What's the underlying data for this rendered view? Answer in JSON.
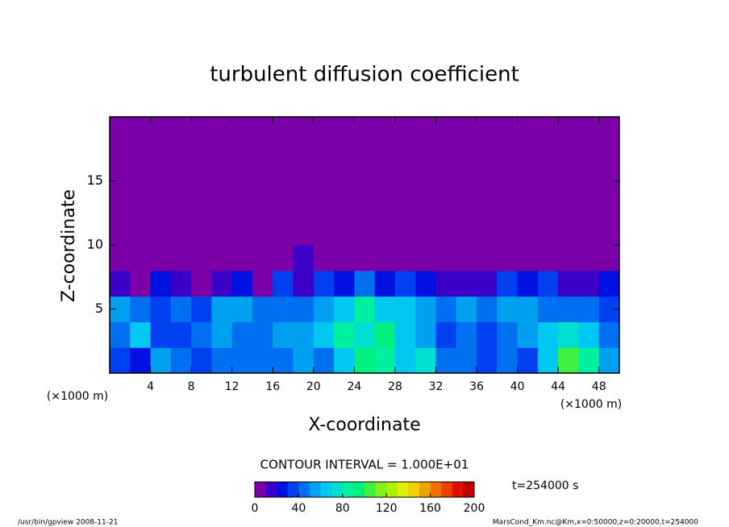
{
  "chart_data": {
    "type": "contour",
    "title": "turbulent diffusion coefficient",
    "xlabel": "X-coordinate",
    "ylabel": "Z-coordinate",
    "xunit": "(×1000 m)",
    "yunit": "(×1000 m)",
    "xlim": [
      0,
      50
    ],
    "ylim": [
      0,
      20
    ],
    "xticks": [
      4,
      8,
      12,
      16,
      20,
      24,
      28,
      32,
      36,
      40,
      44,
      48
    ],
    "yticks": [
      5,
      10,
      15
    ],
    "z": [
      [
        30,
        25,
        50,
        40,
        30,
        45,
        40,
        40,
        45,
        50,
        40,
        60,
        90,
        80,
        60,
        70,
        40,
        45,
        35,
        40,
        30,
        60,
        100,
        80,
        50
      ],
      [
        40,
        60,
        35,
        30,
        40,
        50,
        40,
        45,
        50,
        50,
        60,
        80,
        70,
        90,
        60,
        50,
        30,
        40,
        30,
        40,
        50,
        60,
        70,
        60,
        40
      ],
      [
        50,
        40,
        30,
        40,
        30,
        50,
        50,
        40,
        40,
        40,
        50,
        60,
        80,
        60,
        60,
        50,
        40,
        50,
        40,
        50,
        50,
        40,
        40,
        40,
        30
      ],
      [
        10,
        0,
        20,
        10,
        0,
        10,
        20,
        0,
        30,
        10,
        30,
        20,
        40,
        20,
        30,
        20,
        10,
        10,
        10,
        30,
        20,
        30,
        10,
        10,
        20
      ],
      [
        0,
        0,
        0,
        0,
        0,
        0,
        0,
        0,
        0,
        10,
        0,
        0,
        0,
        0,
        0,
        0,
        0,
        0,
        0,
        0,
        0,
        0,
        0,
        0,
        0
      ],
      [
        0,
        0,
        0,
        0,
        0,
        0,
        0,
        0,
        0,
        0,
        0,
        0,
        0,
        0,
        0,
        0,
        0,
        0,
        0,
        0,
        0,
        0,
        0,
        0,
        0
      ],
      [
        0,
        0,
        0,
        0,
        0,
        0,
        0,
        0,
        0,
        0,
        0,
        0,
        0,
        0,
        0,
        0,
        0,
        0,
        0,
        0,
        0,
        0,
        0,
        0,
        0
      ],
      [
        0,
        0,
        0,
        0,
        0,
        0,
        0,
        0,
        0,
        0,
        0,
        0,
        0,
        0,
        0,
        0,
        0,
        0,
        0,
        0,
        0,
        0,
        0,
        0,
        0
      ],
      [
        0,
        0,
        0,
        0,
        0,
        0,
        0,
        0,
        0,
        0,
        0,
        0,
        0,
        0,
        0,
        0,
        0,
        0,
        0,
        0,
        0,
        0,
        0,
        0,
        0
      ],
      [
        0,
        0,
        0,
        0,
        0,
        0,
        0,
        0,
        0,
        0,
        0,
        0,
        0,
        0,
        0,
        0,
        0,
        0,
        0,
        0,
        0,
        0,
        0,
        0,
        0
      ]
    ],
    "contour_label": "CONTOUR INTERVAL = 1.000E+01",
    "time_label": "t=254000 s",
    "colorbar": {
      "lim": [
        0,
        200
      ],
      "ticks": [
        0,
        40,
        80,
        120,
        160,
        200
      ],
      "colors": [
        "#7b00a8",
        "#3c00c8",
        "#0010e0",
        "#0040f0",
        "#0070f0",
        "#00a0f0",
        "#00c8f0",
        "#00e0d0",
        "#00f0a0",
        "#00f080",
        "#40f040",
        "#80f020",
        "#b0f000",
        "#e0f000",
        "#f0d000",
        "#f0a000",
        "#f07000",
        "#f04000",
        "#e01000",
        "#c00000"
      ]
    },
    "footer_left": "/usr/bin/gpview   2008-11-21",
    "footer_right": "MarsCond_Km.nc@Km,x=0:50000,z=0:20000,t=254000"
  }
}
